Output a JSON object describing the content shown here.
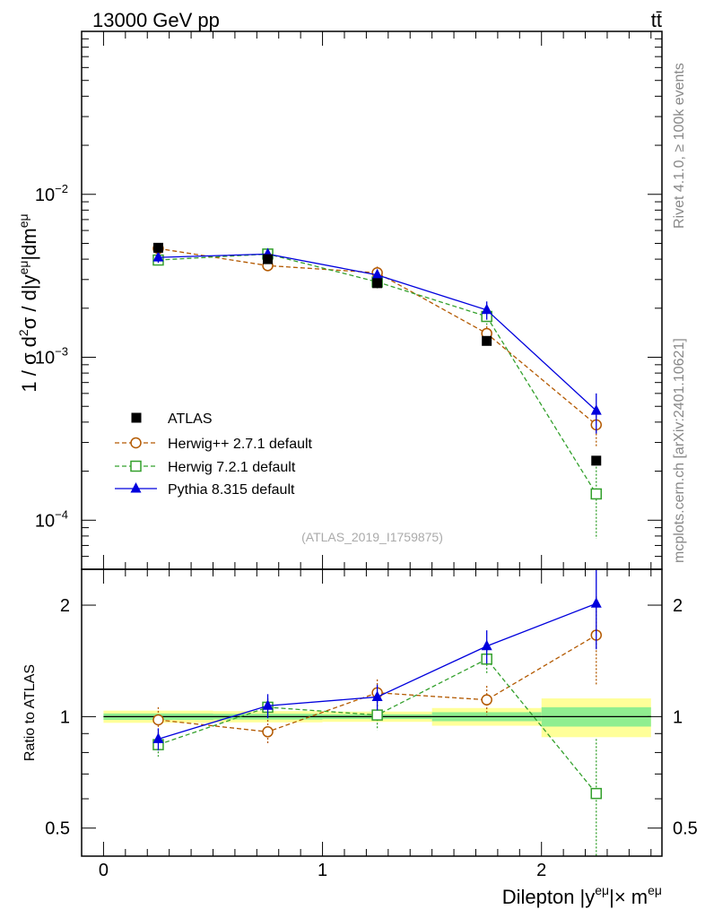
{
  "header": {
    "energy_label": "13000 GeV pp",
    "process_label": "tt̄"
  },
  "side_text": {
    "rivet": "Rivet 4.1.0, ≥ 100k events",
    "source": "mcplots.cern.ch [arXiv:2401.10621]"
  },
  "watermark": "(ATLAS_2019_I1759875)",
  "colors": {
    "atlas": "#000000",
    "herwigpp": "#b35900",
    "herwig7": "#33a02c",
    "pythia": "#0000dd",
    "band_inner": "#90ee90",
    "band_outer": "#ffff99"
  },
  "chart_data": [
    {
      "type": "scatter",
      "panel": "main",
      "yscale": "log",
      "ylabel": "1 / σ d²σ / d|y^eμ|dm^eμ",
      "xlim": [
        -0.1,
        2.55
      ],
      "ylim": [
        5e-05,
        0.1
      ],
      "x": [
        0.25,
        0.75,
        1.25,
        1.75,
        2.25
      ],
      "yticks": [
        {
          "value": 0.01,
          "base": "10",
          "exp": "−2"
        },
        {
          "value": 0.001,
          "base": "10",
          "exp": "−3"
        },
        {
          "value": 0.0001,
          "base": "10",
          "exp": "−4"
        }
      ],
      "series": [
        {
          "name": "ATLAS",
          "key": "atlas",
          "marker": "filled-square",
          "values": [
            0.0047,
            0.004,
            0.00285,
            0.00126,
            0.000232
          ],
          "xerr": [
            0.25,
            0.25,
            0.25,
            0.25,
            0.25
          ]
        },
        {
          "name": "Herwig++ 2.7.1 default",
          "key": "herwigpp",
          "marker": "open-circle",
          "dashed": true,
          "values": [
            0.00465,
            0.00365,
            0.0033,
            0.0014,
            0.000385
          ],
          "errors": [
            0.0002,
            0.00025,
            0.0003,
            0.00015,
            0.0001
          ]
        },
        {
          "name": "Herwig 7.2.1 default",
          "key": "herwig7",
          "marker": "open-square",
          "dashed": true,
          "values": [
            0.00395,
            0.0043,
            0.0029,
            0.00178,
            0.000145
          ],
          "errors": [
            0.00025,
            0.00025,
            0.00025,
            0.0002,
            6.8e-05
          ]
        },
        {
          "name": "Pythia 8.315 default",
          "key": "pythia",
          "marker": "filled-triangle",
          "values": [
            0.0041,
            0.0043,
            0.0032,
            0.00195,
            0.00047
          ],
          "errors": [
            0.0003,
            0.0003,
            0.00025,
            0.00025,
            0.00013
          ]
        }
      ]
    },
    {
      "type": "scatter",
      "panel": "ratio",
      "yscale": "log",
      "ylabel": "Ratio to ATLAS",
      "xlabel": "Dilepton |y^eμ|× m^eμ",
      "xlim": [
        -0.1,
        2.55
      ],
      "ylim": [
        0.42,
        2.5
      ],
      "xticks": [
        0,
        1,
        2
      ],
      "yticks": [
        0.5,
        1,
        2
      ],
      "x": [
        0.25,
        0.75,
        1.25,
        1.75,
        2.25
      ],
      "bands": [
        {
          "x0": 0.0,
          "x1": 0.5,
          "outer": [
            0.962,
            1.038
          ],
          "inner": [
            0.98,
            1.02
          ]
        },
        {
          "x0": 0.5,
          "x1": 1.0,
          "outer": [
            0.965,
            1.035
          ],
          "inner": [
            0.982,
            1.018
          ]
        },
        {
          "x0": 1.0,
          "x1": 1.5,
          "outer": [
            0.968,
            1.032
          ],
          "inner": [
            0.985,
            1.015
          ]
        },
        {
          "x0": 1.5,
          "x1": 2.0,
          "outer": [
            0.945,
            1.055
          ],
          "inner": [
            0.972,
            1.028
          ]
        },
        {
          "x0": 2.0,
          "x1": 2.5,
          "outer": [
            0.88,
            1.12
          ],
          "inner": [
            0.94,
            1.06
          ]
        }
      ],
      "series": [
        {
          "name": "Herwig++ 2.7.1 default",
          "key": "herwigpp",
          "marker": "open-circle",
          "dashed": true,
          "values": [
            0.98,
            0.91,
            1.16,
            1.11,
            1.66
          ],
          "errors": [
            0.08,
            0.07,
            0.1,
            0.1,
            0.45
          ]
        },
        {
          "name": "Herwig 7.2.1 default",
          "key": "herwig7",
          "marker": "open-square",
          "dashed": true,
          "values": [
            0.84,
            1.06,
            1.01,
            1.43,
            0.62
          ],
          "errors": [
            0.06,
            0.06,
            0.09,
            0.12,
            0.25
          ]
        },
        {
          "name": "Pythia 8.315 default",
          "key": "pythia",
          "marker": "filled-triangle",
          "values": [
            0.87,
            1.07,
            1.13,
            1.55,
            2.02
          ],
          "errors": [
            0.06,
            0.08,
            0.09,
            0.16,
            0.5
          ]
        }
      ]
    }
  ]
}
